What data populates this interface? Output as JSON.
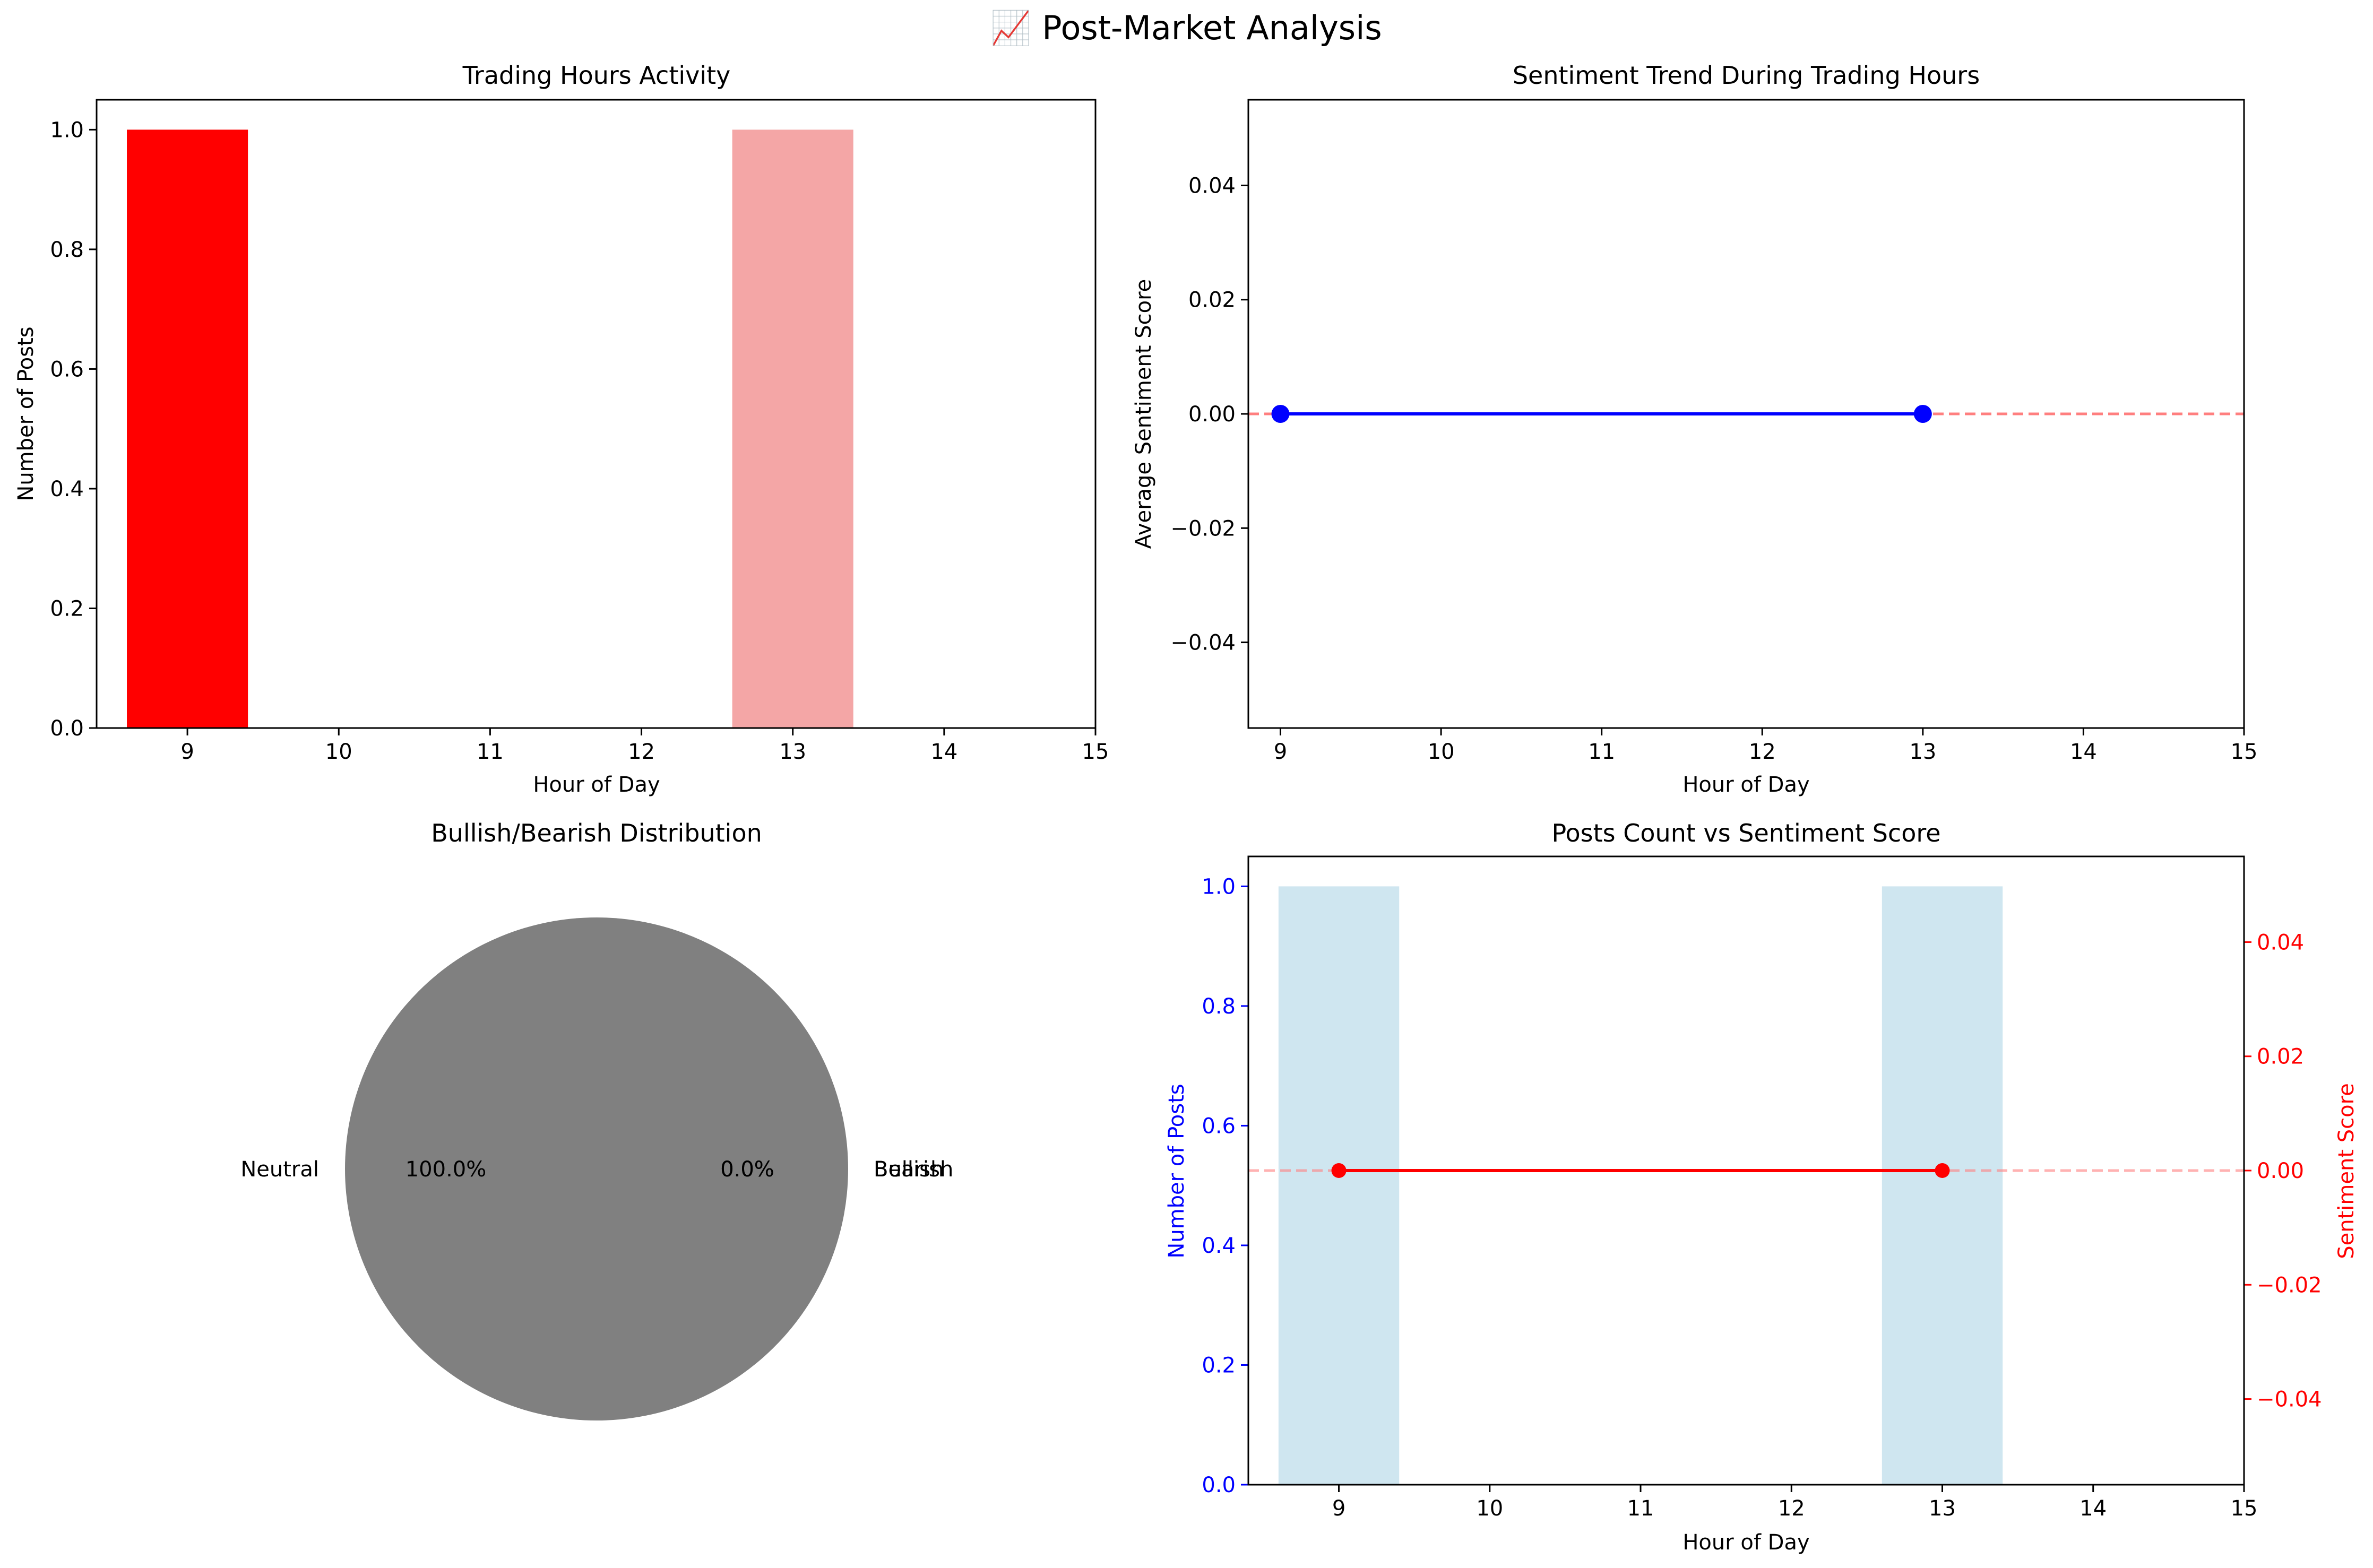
{
  "figure": {
    "title": "📈 Post-Market Analysis"
  },
  "colors": {
    "axis": "#000000",
    "bar_strong": "#ff0000",
    "bar_light": "#f4a6a6",
    "line_blue": "#0000ff",
    "ref_red": "#ff7f7f",
    "pie_grey": "#808080",
    "bar_lightblue": "#cfe6f0",
    "combo_red": "#ff0000",
    "left_axis": "#0000ff",
    "right_axis": "#ff0000"
  },
  "chart_data": [
    {
      "type": "bar",
      "title": "Trading Hours Activity",
      "xlabel": "Hour of Day",
      "ylabel": "Number of Posts",
      "x": [
        9,
        13
      ],
      "values": [
        1,
        1
      ],
      "bar_colors": [
        "#ff0000",
        "#f4a6a6"
      ],
      "bar_width": 0.8,
      "xlim": [
        8.4,
        15
      ],
      "ylim": [
        0,
        1.05
      ],
      "xticks": [
        9,
        10,
        11,
        12,
        13,
        14,
        15
      ],
      "yticks": [
        "0.0",
        "0.2",
        "0.4",
        "0.6",
        "0.8",
        "1.0"
      ],
      "grid": false
    },
    {
      "type": "line",
      "title": "Sentiment Trend During Trading Hours",
      "xlabel": "Hour of Day",
      "ylabel": "Average Sentiment Score",
      "x": [
        9,
        13
      ],
      "values": [
        0.0,
        0.0
      ],
      "reference_line": 0,
      "xlim": [
        8.8,
        15
      ],
      "ylim": [
        -0.055,
        0.055
      ],
      "xticks": [
        9,
        10,
        11,
        12,
        13,
        14,
        15
      ],
      "yticks": [
        "0.04",
        "0.02",
        "0.00",
        "−0.02",
        "−0.04"
      ],
      "grid": false
    },
    {
      "type": "pie",
      "title": "Bullish/Bearish Distribution",
      "slices": [
        {
          "label": "Neutral",
          "pct_label": "100.0%",
          "value": 100.0,
          "color": "#808080"
        },
        {
          "label": "Bullish",
          "pct_label": "0.0%",
          "value": 0.0,
          "color": "#808080"
        },
        {
          "label": "Bearish",
          "pct_label": "0.0%",
          "value": 0.0,
          "color": "#808080"
        }
      ]
    },
    {
      "type": "bar",
      "title": "Posts Count vs Sentiment Score",
      "xlabel": "Hour of Day",
      "ylabel": "Number of Posts",
      "ylabel_right": "Sentiment Score",
      "x": [
        9,
        13
      ],
      "values": [
        1,
        1
      ],
      "line_values": [
        0.0,
        0.0
      ],
      "reference_line": 0,
      "xlim": [
        8.4,
        15
      ],
      "ylim": [
        0,
        1.05
      ],
      "ylim_right": [
        -0.055,
        0.055
      ],
      "xticks": [
        9,
        10,
        11,
        12,
        13,
        14,
        15
      ],
      "yticks": [
        "0.0",
        "0.2",
        "0.4",
        "0.6",
        "0.8",
        "1.0"
      ],
      "yticks_right": [
        "0.04",
        "0.02",
        "0.00",
        "−0.02",
        "−0.04"
      ],
      "grid": false
    }
  ]
}
